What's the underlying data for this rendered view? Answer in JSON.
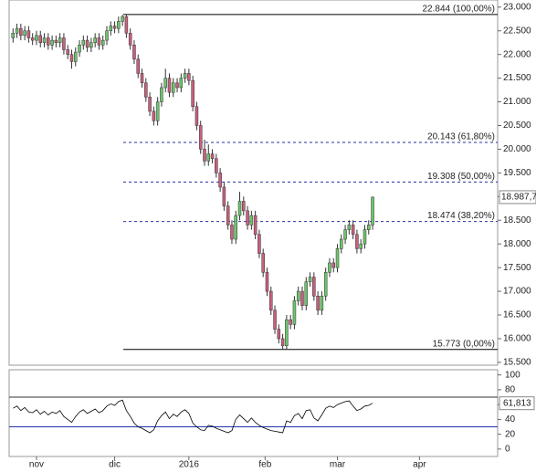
{
  "chart_data": {
    "type": "candlestick",
    "xlim": [
      -1,
      124
    ],
    "xticks": [
      {
        "value": 6,
        "label": "nov"
      },
      {
        "value": 26,
        "label": "dic"
      },
      {
        "value": 45,
        "label": "2016"
      },
      {
        "value": 64.5,
        "label": "feb"
      },
      {
        "value": 83,
        "label": "mar"
      },
      {
        "value": 104,
        "label": "apr"
      }
    ],
    "ylim": [
      15.44,
      23.15
    ],
    "yticks": [
      {
        "value": 15.5,
        "label": "15.500"
      },
      {
        "value": 16,
        "label": "16.000"
      },
      {
        "value": 16.5,
        "label": "16.500"
      },
      {
        "value": 17,
        "label": "17.000"
      },
      {
        "value": 17.5,
        "label": "17.500"
      },
      {
        "value": 18,
        "label": "18.000"
      },
      {
        "value": 18.5,
        "label": "18.500"
      },
      {
        "value": 19,
        "label": "19.000"
      },
      {
        "value": 19.5,
        "label": "19.500"
      },
      {
        "value": 20,
        "label": "20.000"
      },
      {
        "value": 20.5,
        "label": "20.500"
      },
      {
        "value": 21,
        "label": "21.000"
      },
      {
        "value": 21.5,
        "label": "21.500"
      },
      {
        "value": 22,
        "label": "22.000"
      },
      {
        "value": 22.5,
        "label": "22.500"
      },
      {
        "value": 23,
        "label": "23.000"
      }
    ],
    "open": [
      22.35,
      22.45,
      22.55,
      22.4,
      22.5,
      22.35,
      22.3,
      22.4,
      22.25,
      22.35,
      22.2,
      22.3,
      22.25,
      22.35,
      22.1,
      22.0,
      21.85,
      22.05,
      22.2,
      22.3,
      22.15,
      22.25,
      22.35,
      22.2,
      22.3,
      22.5,
      22.6,
      22.55,
      22.7,
      22.8,
      22.45,
      22.2,
      21.9,
      21.6,
      21.4,
      21.1,
      20.8,
      20.6,
      21.0,
      21.3,
      21.5,
      21.2,
      21.4,
      21.3,
      21.5,
      21.6,
      21.45,
      20.9,
      20.5,
      20.0,
      19.75,
      19.9,
      19.8,
      19.5,
      19.2,
      18.8,
      18.4,
      18.1,
      18.6,
      18.9,
      18.7,
      18.4,
      18.6,
      18.2,
      17.8,
      17.4,
      17.0,
      16.6,
      16.2,
      16.0,
      15.85,
      16.4,
      16.3,
      16.8,
      17.0,
      16.7,
      17.2,
      17.3,
      16.9,
      16.6,
      16.9,
      17.4,
      17.6,
      17.5,
      17.9,
      18.1,
      18.3,
      18.4,
      18.2,
      17.9,
      18.0,
      18.3,
      18.4
    ],
    "high": [
      22.55,
      22.65,
      22.65,
      22.6,
      22.6,
      22.45,
      22.5,
      22.5,
      22.45,
      22.45,
      22.4,
      22.4,
      22.45,
      22.45,
      22.2,
      22.1,
      22.15,
      22.3,
      22.4,
      22.4,
      22.35,
      22.45,
      22.45,
      22.4,
      22.6,
      22.7,
      22.7,
      22.8,
      22.84,
      22.84,
      22.55,
      22.3,
      22.0,
      21.7,
      21.5,
      21.2,
      20.9,
      21.1,
      21.4,
      21.7,
      21.6,
      21.5,
      21.5,
      21.6,
      21.7,
      21.7,
      21.55,
      21.0,
      20.6,
      20.2,
      20.1,
      20.0,
      19.9,
      19.6,
      19.3,
      18.9,
      18.5,
      18.7,
      19.1,
      19.0,
      18.8,
      18.7,
      18.7,
      18.3,
      17.9,
      17.5,
      17.1,
      16.7,
      16.3,
      16.1,
      16.5,
      16.5,
      16.9,
      17.1,
      17.1,
      17.3,
      17.4,
      17.4,
      17.0,
      17.0,
      17.5,
      17.7,
      17.7,
      18.0,
      18.2,
      18.4,
      18.5,
      18.5,
      18.3,
      18.1,
      18.4,
      18.5,
      19.0
    ],
    "low": [
      22.25,
      22.35,
      22.3,
      22.3,
      22.25,
      22.2,
      22.2,
      22.15,
      22.15,
      22.1,
      22.1,
      22.15,
      22.15,
      22.0,
      21.9,
      21.7,
      21.75,
      21.95,
      22.1,
      22.05,
      22.05,
      22.15,
      22.1,
      22.1,
      22.2,
      22.4,
      22.45,
      22.45,
      22.6,
      22.35,
      22.1,
      21.8,
      21.5,
      21.3,
      21.0,
      20.7,
      20.5,
      20.5,
      20.9,
      21.2,
      21.1,
      21.1,
      21.2,
      21.2,
      21.4,
      21.35,
      20.8,
      20.4,
      19.9,
      19.65,
      19.65,
      19.7,
      19.4,
      19.1,
      18.7,
      18.3,
      18.0,
      18.0,
      18.5,
      18.6,
      18.3,
      18.3,
      18.1,
      17.7,
      17.3,
      16.9,
      16.5,
      16.1,
      15.9,
      15.77,
      15.77,
      16.2,
      16.2,
      16.7,
      16.6,
      16.6,
      17.1,
      16.8,
      16.5,
      16.5,
      16.8,
      17.3,
      17.4,
      17.4,
      17.8,
      18.0,
      18.2,
      18.1,
      17.8,
      17.8,
      17.9,
      18.2,
      18.3
    ],
    "close": [
      22.45,
      22.55,
      22.4,
      22.5,
      22.35,
      22.3,
      22.4,
      22.25,
      22.35,
      22.2,
      22.3,
      22.25,
      22.35,
      22.1,
      22.0,
      21.85,
      22.05,
      22.2,
      22.3,
      22.15,
      22.25,
      22.35,
      22.2,
      22.3,
      22.5,
      22.6,
      22.55,
      22.7,
      22.8,
      22.45,
      22.2,
      21.9,
      21.6,
      21.4,
      21.1,
      20.8,
      20.6,
      21.0,
      21.3,
      21.5,
      21.2,
      21.4,
      21.3,
      21.5,
      21.6,
      21.45,
      20.9,
      20.5,
      20.0,
      19.75,
      19.9,
      19.8,
      19.5,
      19.2,
      18.8,
      18.4,
      18.1,
      18.6,
      18.9,
      18.7,
      18.4,
      18.6,
      18.2,
      17.8,
      17.4,
      17.0,
      16.6,
      16.2,
      16.0,
      15.85,
      16.4,
      16.3,
      16.8,
      17.0,
      16.7,
      17.2,
      17.3,
      16.9,
      16.6,
      16.9,
      17.4,
      17.6,
      17.5,
      17.9,
      18.1,
      18.3,
      18.4,
      18.2,
      17.9,
      18.0,
      18.3,
      18.4,
      18.9877
    ],
    "up_color": "#6cc46c",
    "down_color": "#c8607c",
    "last_label": "18.987,7",
    "levels": [
      {
        "value": 22.844,
        "label": "22.844 (100,00%)",
        "style": "solid"
      },
      {
        "value": 20.143,
        "label": "20.143 (61,80%)",
        "style": "dashed"
      },
      {
        "value": 19.308,
        "label": "19.308 (50,00%)",
        "style": "dashed"
      },
      {
        "value": 18.474,
        "label": "18.474 (38,20%)",
        "style": "dashed"
      },
      {
        "value": 15.773,
        "label": "15.773 (0,00%)",
        "style": "solid"
      }
    ],
    "indicator": {
      "type": "line",
      "color": "#000000",
      "values": [
        55,
        58,
        52,
        56,
        50,
        49,
        53,
        47,
        51,
        46,
        50,
        48,
        52,
        44,
        40,
        36,
        44,
        50,
        53,
        48,
        51,
        54,
        49,
        52,
        58,
        61,
        59,
        64,
        66,
        52,
        44,
        35,
        30,
        28,
        25,
        22,
        26,
        38,
        45,
        50,
        41,
        47,
        44,
        50,
        53,
        48,
        35,
        30,
        26,
        25,
        32,
        31,
        28,
        26,
        24,
        22,
        25,
        40,
        46,
        41,
        36,
        42,
        36,
        32,
        29,
        27,
        25,
        24,
        23,
        22,
        38,
        36,
        45,
        48,
        41,
        52,
        53,
        42,
        38,
        46,
        55,
        58,
        56,
        60,
        62,
        64,
        65,
        58,
        52,
        54,
        58,
        59,
        61.813
      ],
      "ylim": [
        -10,
        107
      ],
      "yticks": [
        0,
        20,
        40,
        60,
        80,
        100
      ],
      "bands": [
        30,
        70
      ],
      "last_label": "61,813"
    }
  }
}
